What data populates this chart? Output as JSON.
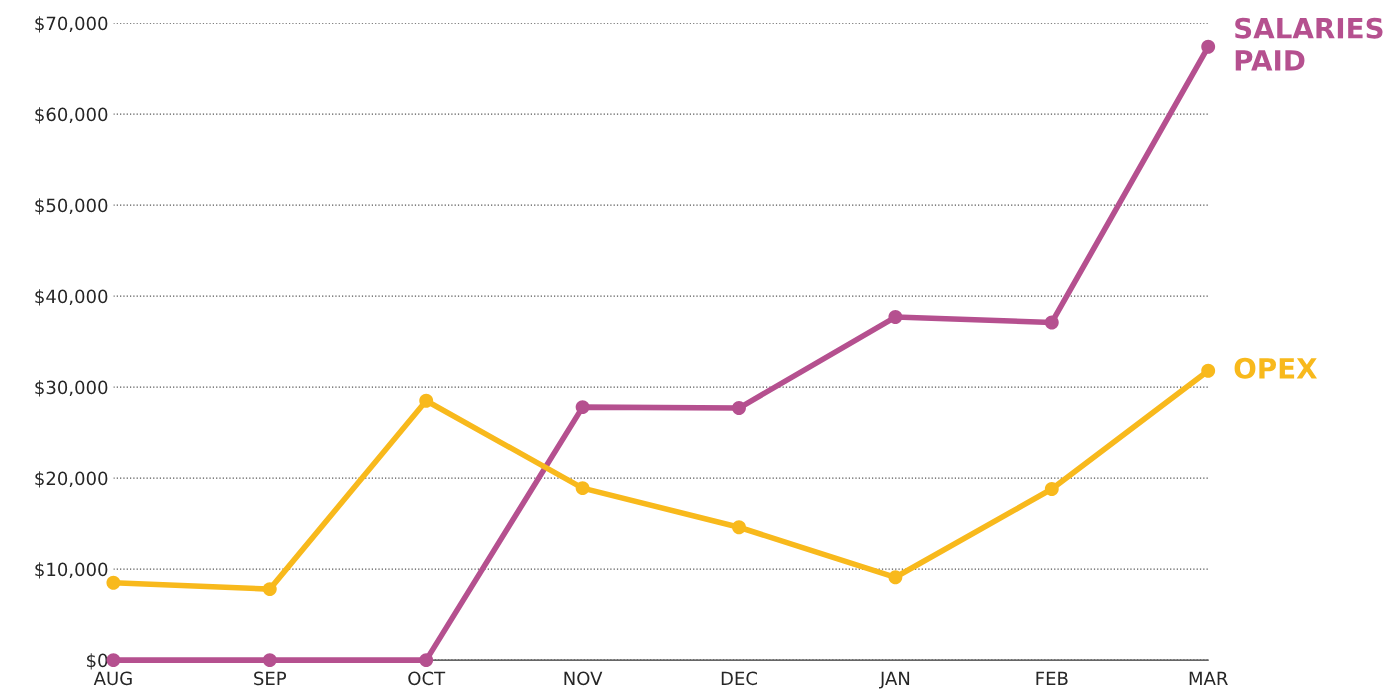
{
  "chart_data": {
    "type": "line",
    "categories": [
      "AUG",
      "SEP",
      "OCT",
      "NOV",
      "DEC",
      "JAN",
      "FEB",
      "MAR"
    ],
    "series": [
      {
        "name": "SALARIES\nPAID",
        "color": "#b5508f",
        "values": [
          0,
          0,
          0,
          27800,
          27700,
          37700,
          37100,
          67400
        ]
      },
      {
        "name": "OPEX",
        "color": "#f8b91c",
        "values": [
          8500,
          7800,
          28500,
          18900,
          14600,
          9100,
          18800,
          31800
        ]
      }
    ],
    "ylim": [
      0,
      70000
    ],
    "yticks": [
      {
        "value": 0,
        "label": "$0"
      },
      {
        "value": 10000,
        "label": "$10,000"
      },
      {
        "value": 20000,
        "label": "$20,000"
      },
      {
        "value": 30000,
        "label": "$30,000"
      },
      {
        "value": 40000,
        "label": "$40,000"
      },
      {
        "value": 50000,
        "label": "$50,000"
      },
      {
        "value": 60000,
        "label": "$60,000"
      },
      {
        "value": 70000,
        "label": "$70,000"
      }
    ],
    "grid": "y",
    "legend": false,
    "marker": "circle",
    "line_style": "solid"
  }
}
